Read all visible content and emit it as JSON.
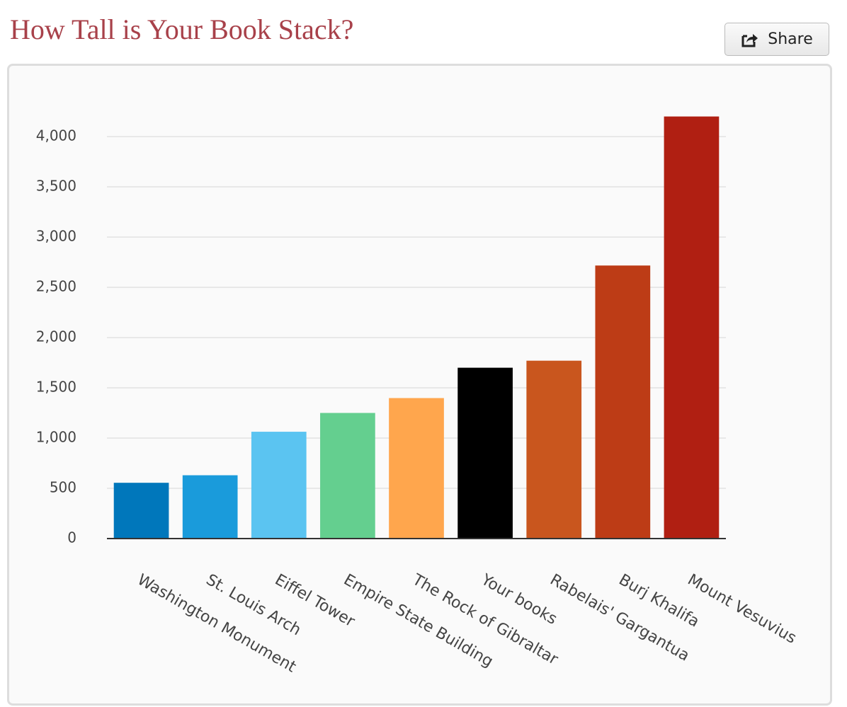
{
  "chart_data": {
    "type": "bar",
    "title": "How Tall is Your Book Stack?",
    "share_label": "Share",
    "categories": [
      "Washington Monument",
      "St. Louis Arch",
      "Eiffel Tower",
      "Empire State Building",
      "The Rock of Gibraltar",
      "Your books",
      "Rabelais' Gargantua",
      "Burj Khalifa",
      "Mount Vesuvius"
    ],
    "values": [
      555,
      630,
      1063,
      1250,
      1398,
      1700,
      1770,
      2717,
      4200
    ],
    "colors": [
      "#0077bb",
      "#1a9bdb",
      "#5bc4f1",
      "#64cf8f",
      "#ffa64d",
      "#000000",
      "#c9561e",
      "#bd3c16",
      "#b01f12"
    ],
    "ylim": [
      0,
      4500
    ],
    "yticks": [
      0,
      500,
      {
        "value": 1000,
        "label": "1,000"
      },
      {
        "value": 1500,
        "label": "1,500"
      },
      {
        "value": 2000,
        "label": "2,000"
      },
      {
        "value": 2500,
        "label": "2,500"
      },
      {
        "value": 3000,
        "label": "3,000"
      },
      {
        "value": 3500,
        "label": "3,500"
      },
      {
        "value": 4000,
        "label": "4,000"
      }
    ],
    "grid": true
  }
}
